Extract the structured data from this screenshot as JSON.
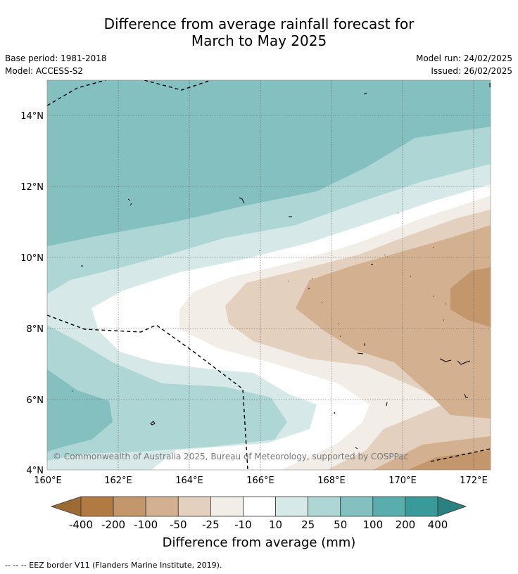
{
  "title_line1": "Difference from average rainfall forecast for",
  "title_line2": "March to May 2025",
  "base_period": "Base period: 1981-2018",
  "model": "Model: ACCESS-S2",
  "model_run": "Model run: 24/02/2025",
  "issued": "Issued: 26/02/2025",
  "copyright": "© Commonwealth of Australia 2025, Bureau of Meteorology, supported by COSPPac",
  "lon_labels": [
    "160°E",
    "162°E",
    "164°E",
    "166°E",
    "168°E",
    "170°E",
    "172°E"
  ],
  "lat_labels": [
    "14°N",
    "12°N",
    "10°N",
    "8°N",
    "6°N",
    "4°N"
  ],
  "colorbar": {
    "title": "Difference from average (mm)",
    "tick_labels": [
      "-400",
      "-200",
      "-100",
      "-50",
      "-25",
      "-10",
      "10",
      "25",
      "50",
      "100",
      "200",
      "400"
    ],
    "colors": [
      "#9e6a34",
      "#b07a42",
      "#c3966b",
      "#d3b190",
      "#e3d0be",
      "#f2ede6",
      "#ffffff",
      "#d6e9e8",
      "#aed6d5",
      "#85c0c0",
      "#5aadad",
      "#389b9a",
      "#2b8180"
    ]
  },
  "footnote": "--  --  -- EEZ border V11 (Flanders Marine Institute, 2019)."
}
